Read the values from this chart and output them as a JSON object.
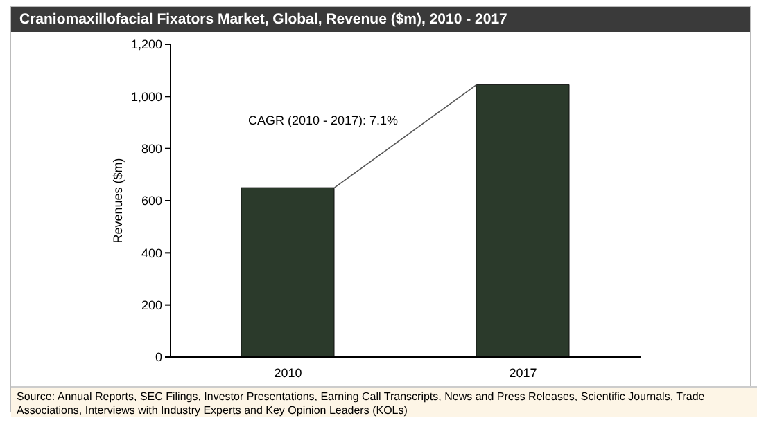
{
  "chart_data": {
    "type": "bar",
    "title": "Craniomaxillofacial Fixators Market, Global, Revenue ($m), 2010 - 2017",
    "categories": [
      "2010",
      "2017"
    ],
    "values": [
      650,
      1045
    ],
    "color": "#2b3a2b",
    "ylabel": "Revenues ($m)",
    "ylim": [
      0,
      1200
    ],
    "yticks": [
      0,
      200,
      400,
      600,
      800,
      {
        "value": 1000,
        "label": "1,000"
      },
      {
        "value": 1200,
        "label": "1,200"
      }
    ],
    "annotations": [
      "CAGR (2010 - 2017): 7.1%",
      "Source: Annual Reports, SEC Filings, Investor Presentations, Earning Call Transcripts, News and Press Releases, Scientific Journals, Trade Associations, Interviews with Industry Experts and Key Opinion Leaders (KOLs)"
    ]
  }
}
